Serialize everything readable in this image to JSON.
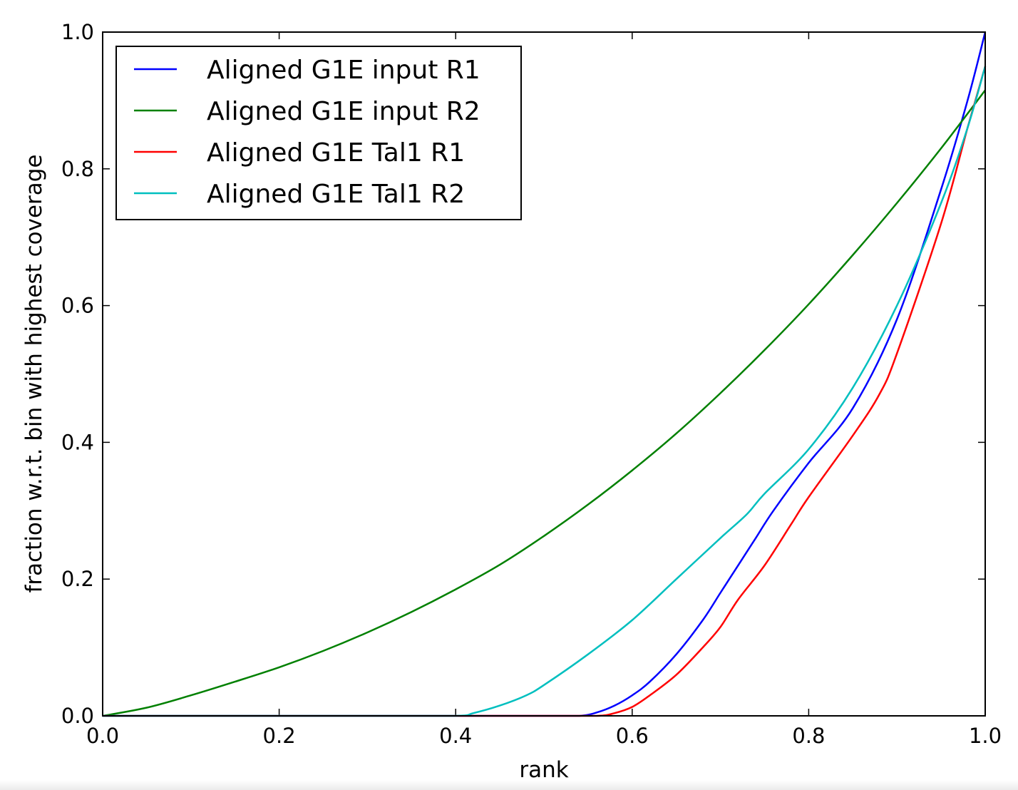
{
  "chart_data": {
    "type": "line",
    "title": "",
    "xlabel": "rank",
    "ylabel": "fraction w.r.t. bin with highest coverage",
    "xlim": [
      0.0,
      1.0
    ],
    "ylim": [
      0.0,
      1.0
    ],
    "xticks": [
      "0.0",
      "0.2",
      "0.4",
      "0.6",
      "0.8",
      "1.0"
    ],
    "yticks": [
      "0.0",
      "0.2",
      "0.4",
      "0.6",
      "0.8",
      "1.0"
    ],
    "grid": false,
    "legend_position": "top-left",
    "series": [
      {
        "name": "Aligned G1E input R1",
        "color": "#0000ff",
        "x": [
          0,
          0.1,
          0.2,
          0.3,
          0.4,
          0.5,
          0.54,
          0.56,
          0.58,
          0.6,
          0.62,
          0.65,
          0.68,
          0.7,
          0.72,
          0.74,
          0.76,
          0.8,
          0.85,
          0.9,
          0.95,
          0.98,
          1.0
        ],
        "y": [
          0,
          0,
          0,
          0,
          0,
          0,
          0.0,
          0.005,
          0.015,
          0.03,
          0.05,
          0.09,
          0.14,
          0.18,
          0.22,
          0.26,
          0.3,
          0.37,
          0.45,
          0.58,
          0.77,
          0.9,
          1.0
        ]
      },
      {
        "name": "Aligned G1E input R2",
        "color": "#008000",
        "x": [
          0,
          0.05,
          0.1,
          0.15,
          0.2,
          0.25,
          0.3,
          0.35,
          0.4,
          0.45,
          0.5,
          0.55,
          0.6,
          0.65,
          0.7,
          0.75,
          0.8,
          0.85,
          0.9,
          0.95,
          1.0
        ],
        "y": [
          0,
          0.012,
          0.03,
          0.05,
          0.071,
          0.095,
          0.122,
          0.152,
          0.185,
          0.221,
          0.263,
          0.309,
          0.359,
          0.413,
          0.472,
          0.535,
          0.602,
          0.674,
          0.75,
          0.83,
          0.915
        ]
      },
      {
        "name": "Aligned G1E Tal1 R1",
        "color": "#ff0000",
        "x": [
          0,
          0.1,
          0.2,
          0.3,
          0.4,
          0.5,
          0.56,
          0.58,
          0.6,
          0.62,
          0.65,
          0.68,
          0.7,
          0.72,
          0.75,
          0.78,
          0.8,
          0.85,
          0.88,
          0.9,
          0.95,
          0.98,
          1.0
        ],
        "y": [
          0,
          0,
          0,
          0,
          0,
          0,
          0.0,
          0.004,
          0.013,
          0.03,
          0.06,
          0.1,
          0.13,
          0.17,
          0.22,
          0.28,
          0.32,
          0.41,
          0.47,
          0.53,
          0.72,
          0.86,
          0.95
        ]
      },
      {
        "name": "Aligned G1E Tal1 R2",
        "color": "#00bfbf",
        "x": [
          0,
          0.1,
          0.2,
          0.3,
          0.4,
          0.42,
          0.45,
          0.48,
          0.5,
          0.55,
          0.6,
          0.65,
          0.7,
          0.73,
          0.75,
          0.8,
          0.85,
          0.9,
          0.95,
          0.98,
          1.0
        ],
        "y": [
          0,
          0,
          0,
          0,
          0,
          0.004,
          0.015,
          0.03,
          0.045,
          0.09,
          0.14,
          0.2,
          0.26,
          0.295,
          0.325,
          0.39,
          0.48,
          0.6,
          0.75,
          0.86,
          0.95
        ]
      }
    ]
  }
}
